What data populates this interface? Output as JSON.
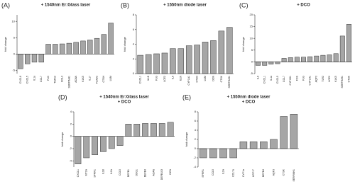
{
  "chart_data": [
    {
      "type": "bar",
      "panel": "(A)",
      "title": [
        "+ 1540nm Er:Glass laser"
      ],
      "ylabel": "fold change",
      "color": "#a6a6a6",
      "categories": [
        "CXCL8",
        "CXCL5",
        "IL1a",
        "CCL7",
        "FLG",
        "TGFb2",
        "COL3",
        "SERPINH1",
        "ACAN",
        "KLK5",
        "IL17",
        "PLA2G",
        "CTSH",
        "LUM"
      ],
      "values": [
        -4.5,
        -3,
        -2.5,
        -2.5,
        3,
        3,
        3.1,
        3.3,
        3.6,
        4,
        4.3,
        4.8,
        6,
        9.5
      ],
      "ylim": [
        -6,
        12
      ],
      "yticks": [
        -5,
        0,
        5,
        10
      ]
    },
    {
      "type": "bar",
      "panel": "(B)",
      "title": [
        "+ 1550nm diode laser"
      ],
      "ylabel": "fold change",
      "color": "#a6a6a6",
      "categories": [
        "CXCL1",
        "IL1B",
        "FLG",
        "LCE2",
        "IL6",
        "ELN",
        "CYP1A1",
        "CTSH",
        "LUM",
        "DCN",
        "CTSK",
        "SERPINH1"
      ],
      "values": [
        2.5,
        2.6,
        2.7,
        2.8,
        3.4,
        3.4,
        3.8,
        3.9,
        4.3,
        4.5,
        5.8,
        6.3
      ],
      "ylim": [
        0,
        8
      ],
      "yticks": [
        0,
        2,
        4,
        6,
        8
      ]
    },
    {
      "type": "bar",
      "panel": "(C)",
      "title": [
        "+ DCO"
      ],
      "ylabel": "fold change",
      "color": "#a6a6a6",
      "categories": [
        "IL6",
        "CXCL1",
        "IL1a",
        "CXCL5",
        "CCL7",
        "CYP1B1",
        "FOS",
        "FLG",
        "CYP1A1",
        "AQP3",
        "TLR2",
        "LCE2",
        "KLK5",
        "SERPINH1",
        "CTSK"
      ],
      "values": [
        -1.5,
        -1.5,
        -1,
        -0.8,
        1.5,
        1.8,
        2,
        2,
        2.2,
        2.5,
        2.8,
        3,
        3.5,
        11,
        16
      ],
      "ylim": [
        -5,
        20
      ],
      "yticks": [
        -5,
        0,
        5,
        10,
        15,
        20
      ]
    },
    {
      "type": "bar",
      "panel": "(D)",
      "title": [
        "+ 1540nm Er:Glass laser",
        "+ DCO"
      ],
      "ylabel": "fold change",
      "color": "#a6a6a6",
      "categories": [
        "CXCL1",
        "MT1A",
        "SPRR1",
        "IL1B",
        "IL1A",
        "CCL5",
        "DEFB1",
        "DSG1",
        "DEFB4",
        "ACAN",
        "DEFB103",
        "DCN"
      ],
      "values": [
        -4.5,
        -3.5,
        -3,
        -2.5,
        -2,
        -1.5,
        2,
        2,
        2.1,
        2.1,
        2.1,
        2.3
      ],
      "ylim": [
        -5,
        4
      ],
      "yticks": [
        -4,
        -2,
        0,
        2,
        4
      ]
    },
    {
      "type": "bar",
      "panel": "(E)",
      "title": [
        "+ 1550nm diode laser",
        "+ DCO"
      ],
      "ylabel": "fold change",
      "color": "#a6a6a6",
      "categories": [
        "SPRR1",
        "CCL5",
        "IL1A",
        "CCL7a",
        "CYP1a",
        "KRT17",
        "DEFB4",
        "AQP3",
        "CTSK",
        "SERPINH1"
      ],
      "values": [
        -2,
        -2,
        -2,
        -2,
        1.5,
        1.5,
        1.5,
        2,
        7,
        7.5
      ],
      "ylim": [
        -4,
        8
      ],
      "yticks": [
        -4,
        -2,
        0,
        2,
        4,
        6,
        8
      ]
    }
  ]
}
